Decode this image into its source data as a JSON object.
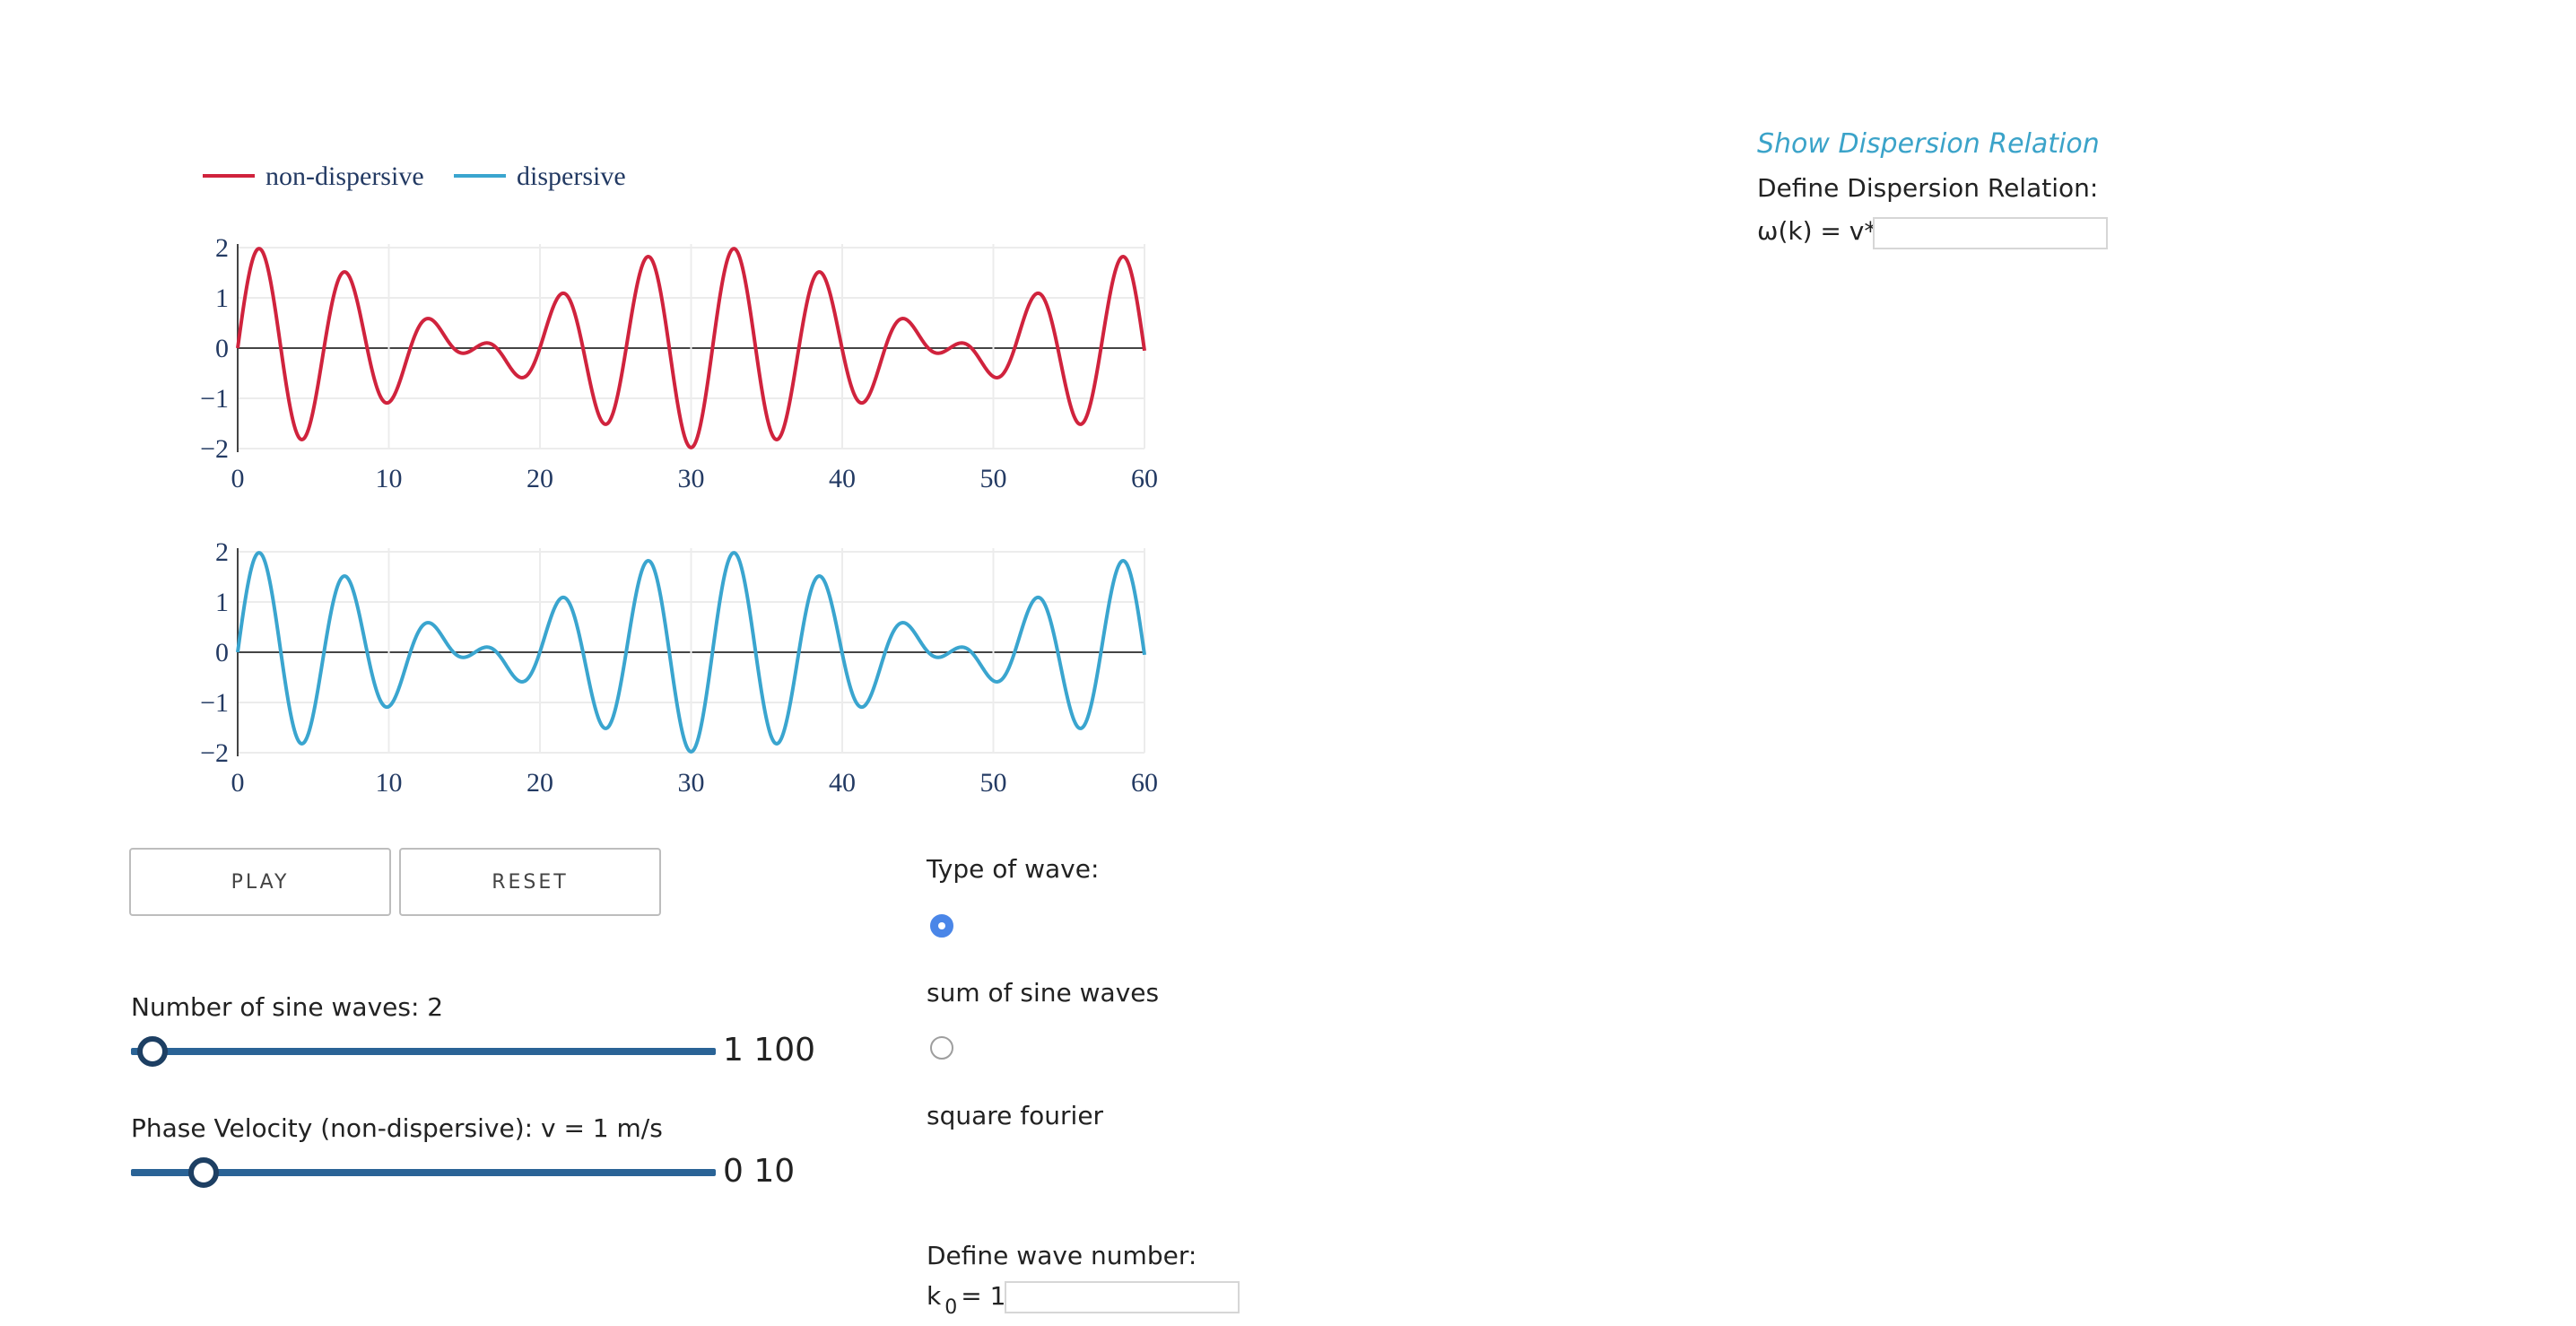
{
  "legend": {
    "series1": "non-dispersive",
    "series2": "dispersive",
    "color1": "#d0233d",
    "color2": "#3aa5cf"
  },
  "chart_data": [
    {
      "type": "line",
      "series": [
        {
          "name": "non-dispersive",
          "color": "#d0233d"
        }
      ],
      "formula": "sin(k1*x)+sin(k2*x), k1=1, k2=1.2",
      "xlim": [
        0,
        60
      ],
      "ylim": [
        -2,
        2
      ],
      "xticks": [
        "0",
        "10",
        "20",
        "30",
        "40",
        "50",
        "60"
      ],
      "yticks": [
        "2",
        "1",
        "0",
        "−1",
        "−2"
      ],
      "grid": true
    },
    {
      "type": "line",
      "series": [
        {
          "name": "dispersive",
          "color": "#3aa5cf"
        }
      ],
      "formula": "sin(k1*x)+sin(k2*x), k1=1, k2=1.2",
      "xlim": [
        0,
        60
      ],
      "ylim": [
        -2,
        2
      ],
      "xticks": [
        "0",
        "10",
        "20",
        "30",
        "40",
        "50",
        "60"
      ],
      "yticks": [
        "2",
        "1",
        "0",
        "−1",
        "−2"
      ],
      "grid": true
    }
  ],
  "controls": {
    "play_label": "PLAY",
    "reset_label": "RESET",
    "num_sines_label": "Number of sine waves: 2",
    "num_sines_value": 2,
    "num_sines_range": "1 100",
    "velocity_label": "Phase Velocity (non-dispersive): v = 1 m/s",
    "velocity_value": 1,
    "velocity_range": "0 10"
  },
  "wave_type": {
    "title": "Type of wave:",
    "options": [
      "sum of sine waves",
      "square fourier"
    ],
    "selected": "sum of sine waves"
  },
  "wave_number": {
    "title": "Define wave number:",
    "label_k": "k",
    "label_sub": "0",
    "label_eq": "= 1",
    "value": ""
  },
  "dispersion": {
    "link": "Show Dispersion Relation",
    "title": "Define Dispersion Relation:",
    "formula_label": "ω(k) = v*k",
    "value": ""
  }
}
